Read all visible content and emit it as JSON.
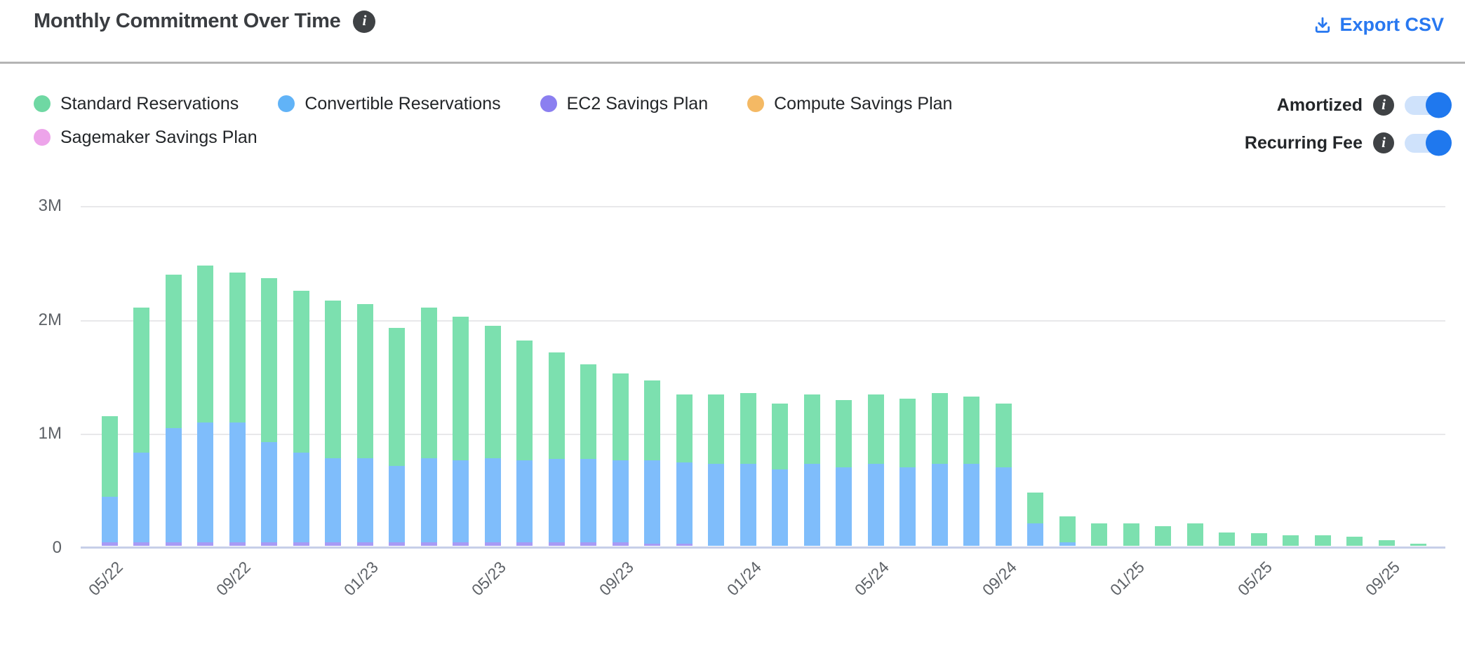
{
  "header": {
    "title": "Monthly Commitment Over Time",
    "export_label": "Export CSV"
  },
  "legend": {
    "items": [
      {
        "label": "Standard Reservations",
        "color": "#6fd8a3"
      },
      {
        "label": "Convertible Reservations",
        "color": "#61b3f7"
      },
      {
        "label": "EC2 Savings Plan",
        "color": "#8b7ff0"
      },
      {
        "label": "Compute Savings Plan",
        "color": "#f4b964"
      },
      {
        "label": "Sagemaker Savings Plan",
        "color": "#eda4ea"
      }
    ]
  },
  "toggles": [
    {
      "label": "Amortized",
      "state": "on"
    },
    {
      "label": "Recurring Fee",
      "state": "on"
    }
  ],
  "colors": {
    "accent_blue": "#2878f0",
    "toggle_track": "#cfe2fb",
    "toggle_knob": "#1f78ee",
    "bar_green": "#7ce0af",
    "bar_blue": "#7fbdfb",
    "bar_purple": "#a79bf5",
    "gridline": "#e8e8ea",
    "baseline": "#c7cfe8",
    "axis_text": "#5e6267",
    "title_text": "#3a3d41"
  },
  "chart_data": {
    "type": "bar",
    "stacked": true,
    "title": "Monthly Commitment Over Time",
    "unit": "millions (M)",
    "ylim": [
      0,
      3000000
    ],
    "y_ticks": [
      "0",
      "1M",
      "2M",
      "3M"
    ],
    "grid": true,
    "legend_position": "top-left",
    "x": [
      "05/22",
      "06/22",
      "07/22",
      "08/22",
      "09/22",
      "10/22",
      "11/22",
      "12/22",
      "01/23",
      "02/23",
      "03/23",
      "04/23",
      "05/23",
      "06/23",
      "07/23",
      "08/23",
      "09/23",
      "10/23",
      "11/23",
      "12/23",
      "01/24",
      "02/24",
      "03/24",
      "04/24",
      "05/24",
      "06/24",
      "07/24",
      "08/24",
      "09/24",
      "10/24",
      "11/24",
      "12/24",
      "01/25",
      "02/25",
      "03/25",
      "04/25",
      "05/25",
      "06/25",
      "07/25",
      "08/25",
      "09/25",
      "10/25"
    ],
    "x_ticks_shown": [
      "05/22",
      "09/22",
      "01/23",
      "05/23",
      "09/23",
      "01/24",
      "05/24",
      "09/24",
      "01/25",
      "05/25",
      "09/25"
    ],
    "stack_order_bottom_to_top": [
      "EC2 Savings Plan",
      "Convertible Reservations",
      "Standard Reservations"
    ],
    "series": [
      {
        "name": "Standard Reservations",
        "color": "#7ce0af",
        "values_millions": [
          0.71,
          1.27,
          1.35,
          1.38,
          1.32,
          1.44,
          1.42,
          1.38,
          1.35,
          1.21,
          1.32,
          1.26,
          1.16,
          1.05,
          0.94,
          0.83,
          0.76,
          0.7,
          0.6,
          0.61,
          0.62,
          0.58,
          0.61,
          0.59,
          0.61,
          0.6,
          0.62,
          0.59,
          0.56,
          0.27,
          0.23,
          0.2,
          0.2,
          0.17,
          0.2,
          0.12,
          0.11,
          0.09,
          0.09,
          0.08,
          0.05,
          0.02
        ]
      },
      {
        "name": "Convertible Reservations",
        "color": "#7fbdfb",
        "values_millions": [
          0.4,
          0.79,
          1.0,
          1.05,
          1.05,
          0.88,
          0.79,
          0.74,
          0.74,
          0.67,
          0.74,
          0.72,
          0.74,
          0.72,
          0.73,
          0.73,
          0.72,
          0.73,
          0.71,
          0.72,
          0.72,
          0.67,
          0.72,
          0.69,
          0.72,
          0.69,
          0.72,
          0.72,
          0.69,
          0.2,
          0.03,
          0,
          0,
          0,
          0,
          0,
          0,
          0,
          0,
          0,
          0,
          0
        ]
      },
      {
        "name": "EC2 Savings Plan",
        "color": "#a79bf5",
        "values_millions": [
          0.03,
          0.03,
          0.03,
          0.03,
          0.03,
          0.03,
          0.03,
          0.03,
          0.03,
          0.03,
          0.03,
          0.03,
          0.03,
          0.03,
          0.03,
          0.03,
          0.03,
          0.02,
          0.02,
          0,
          0,
          0,
          0,
          0,
          0,
          0,
          0,
          0,
          0,
          0,
          0,
          0,
          0,
          0,
          0,
          0,
          0,
          0,
          0,
          0,
          0,
          0
        ]
      },
      {
        "name": "Compute Savings Plan",
        "color": "#f4b964",
        "values_millions": [
          0,
          0,
          0,
          0,
          0,
          0,
          0,
          0,
          0,
          0,
          0,
          0,
          0,
          0,
          0,
          0,
          0,
          0,
          0,
          0,
          0,
          0,
          0,
          0,
          0,
          0,
          0,
          0,
          0,
          0,
          0,
          0,
          0,
          0,
          0,
          0,
          0,
          0,
          0,
          0,
          0,
          0
        ]
      },
      {
        "name": "Sagemaker Savings Plan",
        "color": "#eda4ea",
        "values_millions": [
          0,
          0,
          0,
          0,
          0,
          0,
          0,
          0,
          0,
          0,
          0,
          0,
          0,
          0,
          0,
          0,
          0,
          0,
          0,
          0,
          0,
          0,
          0,
          0,
          0,
          0,
          0,
          0,
          0,
          0,
          0,
          0,
          0,
          0,
          0,
          0,
          0,
          0,
          0,
          0,
          0,
          0
        ]
      }
    ]
  }
}
